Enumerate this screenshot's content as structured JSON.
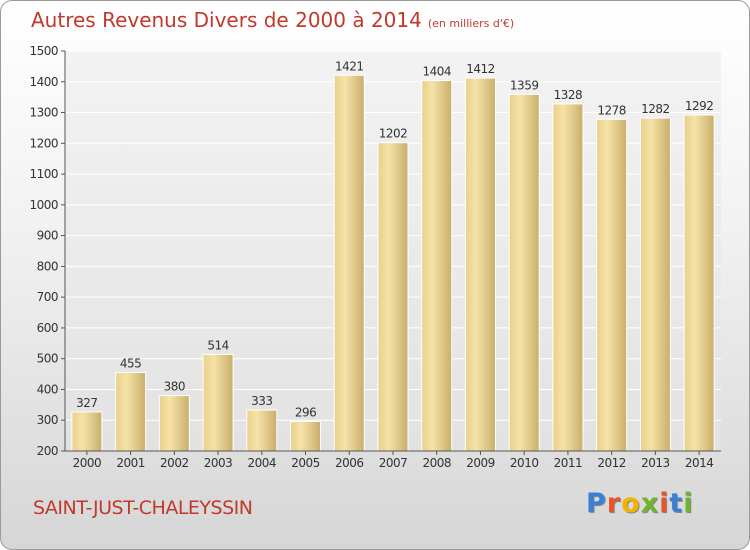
{
  "header": {
    "title": "Autres Revenus Divers de 2000 à 2014",
    "unit": "(en milliers d'€)"
  },
  "footer": {
    "town": "SAINT-JUST-CHALEYSSIN",
    "logo_letters": [
      "P",
      "r",
      "o",
      "x",
      "i",
      "t",
      "i"
    ],
    "logo_colors": [
      "#3a7fd5",
      "#e8552b",
      "#f2b400",
      "#6fb52c",
      "#e8552b",
      "#3a7fd5",
      "#6fb52c"
    ]
  },
  "colors": {
    "bar_fill": "#f3dc9c",
    "bar_dark": "#c6ac6a",
    "title": "#c0392b"
  },
  "chart_data": {
    "type": "bar",
    "title": "Autres Revenus Divers de 2000 à 2014",
    "categories": [
      "2000",
      "2001",
      "2002",
      "2003",
      "2004",
      "2005",
      "2006",
      "2007",
      "2008",
      "2009",
      "2010",
      "2011",
      "2012",
      "2013",
      "2014"
    ],
    "values": [
      327,
      455,
      380,
      514,
      333,
      296,
      1421,
      1202,
      1404,
      1412,
      1359,
      1328,
      1278,
      1282,
      1292
    ],
    "yticks": [
      200,
      300,
      400,
      500,
      600,
      700,
      800,
      900,
      1000,
      1100,
      1200,
      1300,
      1400,
      1500
    ],
    "ylim": [
      200,
      1500
    ],
    "grid": true,
    "legend": "none"
  }
}
